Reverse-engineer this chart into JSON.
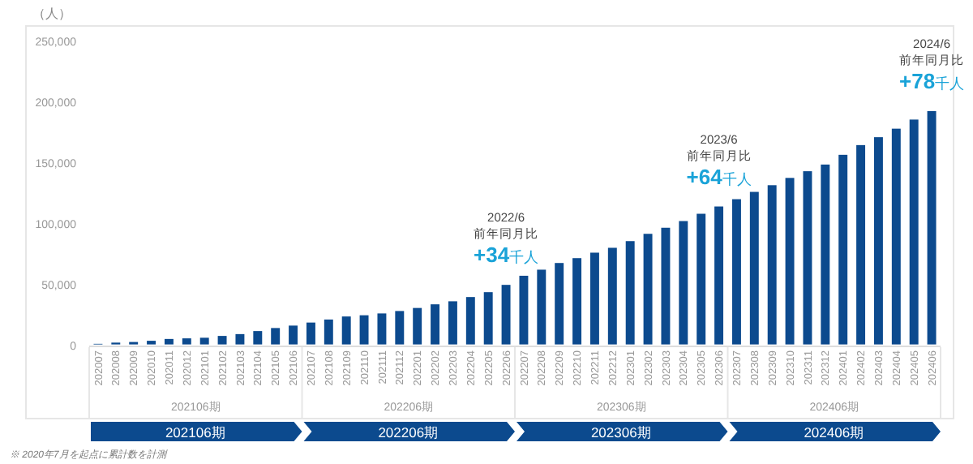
{
  "chart_data": {
    "type": "bar",
    "ylabel": "（人）",
    "categories": [
      "202007",
      "202008",
      "202009",
      "202010",
      "202011",
      "202012",
      "202101",
      "202102",
      "202103",
      "202104",
      "202105",
      "202106",
      "202107",
      "202108",
      "202109",
      "202110",
      "202111",
      "202112",
      "202201",
      "202202",
      "202203",
      "202204",
      "202205",
      "202206",
      "202207",
      "202208",
      "202209",
      "202210",
      "202211",
      "202212",
      "202301",
      "202302",
      "202303",
      "202304",
      "202305",
      "202306",
      "202307",
      "202308",
      "202309",
      "202310",
      "202311",
      "202312",
      "202401",
      "202402",
      "202403",
      "202404",
      "202405",
      "202406"
    ],
    "values": [
      500,
      1500,
      2000,
      3000,
      4500,
      5000,
      5500,
      7000,
      8500,
      11000,
      13500,
      15500,
      18000,
      20500,
      23000,
      24000,
      25500,
      27500,
      30000,
      33000,
      35500,
      39000,
      43000,
      49000,
      56500,
      61500,
      67000,
      71000,
      75500,
      79500,
      85000,
      91000,
      96000,
      101500,
      107500,
      113500,
      119500,
      125500,
      131000,
      137000,
      142500,
      148000,
      156000,
      164000,
      170500,
      177500,
      185000,
      192000
    ],
    "color": "#0c4a8e",
    "ylim": [
      0,
      250000
    ],
    "yticks": [
      {
        "value": 0,
        "label": "0"
      },
      {
        "value": 50000,
        "label": "50,000"
      },
      {
        "value": 100000,
        "label": "100,000"
      },
      {
        "value": 150000,
        "label": "150,000"
      },
      {
        "value": 200000,
        "label": "200,000"
      },
      {
        "value": 250000,
        "label": "250,000"
      }
    ],
    "grid": false,
    "annotations": [
      {
        "text": "2022/6\n前年同月比\n+34千人",
        "x": "202206",
        "y": 49000
      },
      {
        "text": "2023/6\n前年同月比\n+64千人",
        "x": "202306",
        "y": 113500
      },
      {
        "text": "2024/6\n前年同月比\n+78千人",
        "x": "202406",
        "y": 192000
      },
      "202106期",
      "202206期",
      "202306期",
      "202406期",
      "202106期",
      "202206期",
      "202306期",
      "202406期",
      "※ 2020年7月を起点に累計数を計測"
    ]
  }
}
